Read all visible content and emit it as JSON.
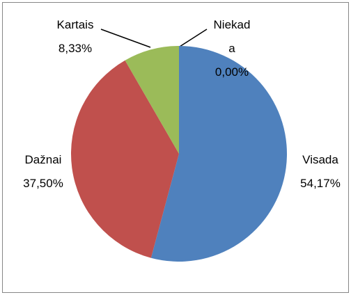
{
  "chart_data": {
    "type": "pie",
    "categories": [
      "Visada",
      "Dažnai",
      "Kartais",
      "Niekada"
    ],
    "values": [
      54.17,
      37.5,
      8.33,
      0.0
    ],
    "value_labels": [
      "54,17%",
      "37,50%",
      "8,33%",
      "0,00%"
    ],
    "colors": [
      "#4f81bd",
      "#c0504d",
      "#9bbb59",
      "#8064a2"
    ]
  }
}
